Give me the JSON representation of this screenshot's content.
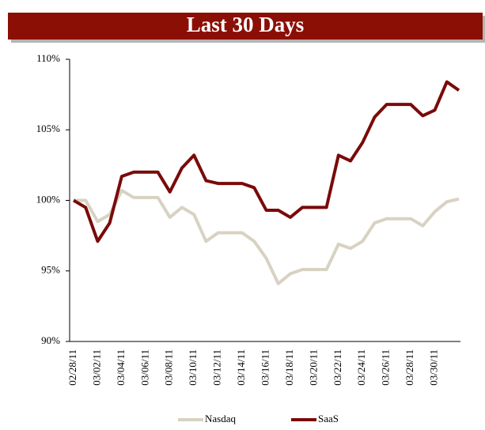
{
  "chart_data": {
    "type": "line",
    "title": "Last 30 Days",
    "categories": [
      "02/28/11",
      null,
      "03/02/11",
      null,
      "03/04/11",
      null,
      "03/06/11",
      null,
      "03/08/11",
      null,
      "03/10/11",
      null,
      "03/12/11",
      null,
      "03/14/11",
      null,
      "03/16/11",
      null,
      "03/18/11",
      null,
      "03/20/11",
      null,
      "03/22/11",
      null,
      "03/24/11",
      null,
      "03/26/11",
      null,
      "03/28/11",
      null,
      "03/30/11",
      null,
      null
    ],
    "series": [
      {
        "name": "Nasdaq",
        "color": "#d8d2c2",
        "values": [
          100.0,
          100.0,
          98.5,
          99.0,
          100.7,
          100.2,
          100.2,
          100.2,
          98.8,
          99.5,
          99.0,
          97.1,
          97.7,
          97.7,
          97.7,
          97.1,
          95.9,
          94.1,
          94.8,
          95.1,
          95.1,
          95.1,
          96.9,
          96.6,
          97.1,
          98.4,
          98.7,
          98.7,
          98.7,
          98.2,
          99.2,
          99.9,
          100.1
        ]
      },
      {
        "name": "SaaS",
        "color": "#7a0a0a",
        "values": [
          100.0,
          99.5,
          97.1,
          98.4,
          101.7,
          102.0,
          102.0,
          102.0,
          100.6,
          102.3,
          103.2,
          101.4,
          101.2,
          101.2,
          101.2,
          100.9,
          99.3,
          99.3,
          98.8,
          99.5,
          99.5,
          99.5,
          103.2,
          102.8,
          104.1,
          105.9,
          106.8,
          106.8,
          106.8,
          106.0,
          106.4,
          108.4,
          107.8
        ]
      }
    ],
    "ylim": [
      90,
      110
    ],
    "yticks": [
      {
        "value": 90,
        "label": "90%"
      },
      {
        "value": 95,
        "label": "95%"
      },
      {
        "value": 100,
        "label": "100%"
      },
      {
        "value": 105,
        "label": "105%"
      },
      {
        "value": 110,
        "label": "110%"
      }
    ],
    "grid": false,
    "legend": "bottom"
  }
}
